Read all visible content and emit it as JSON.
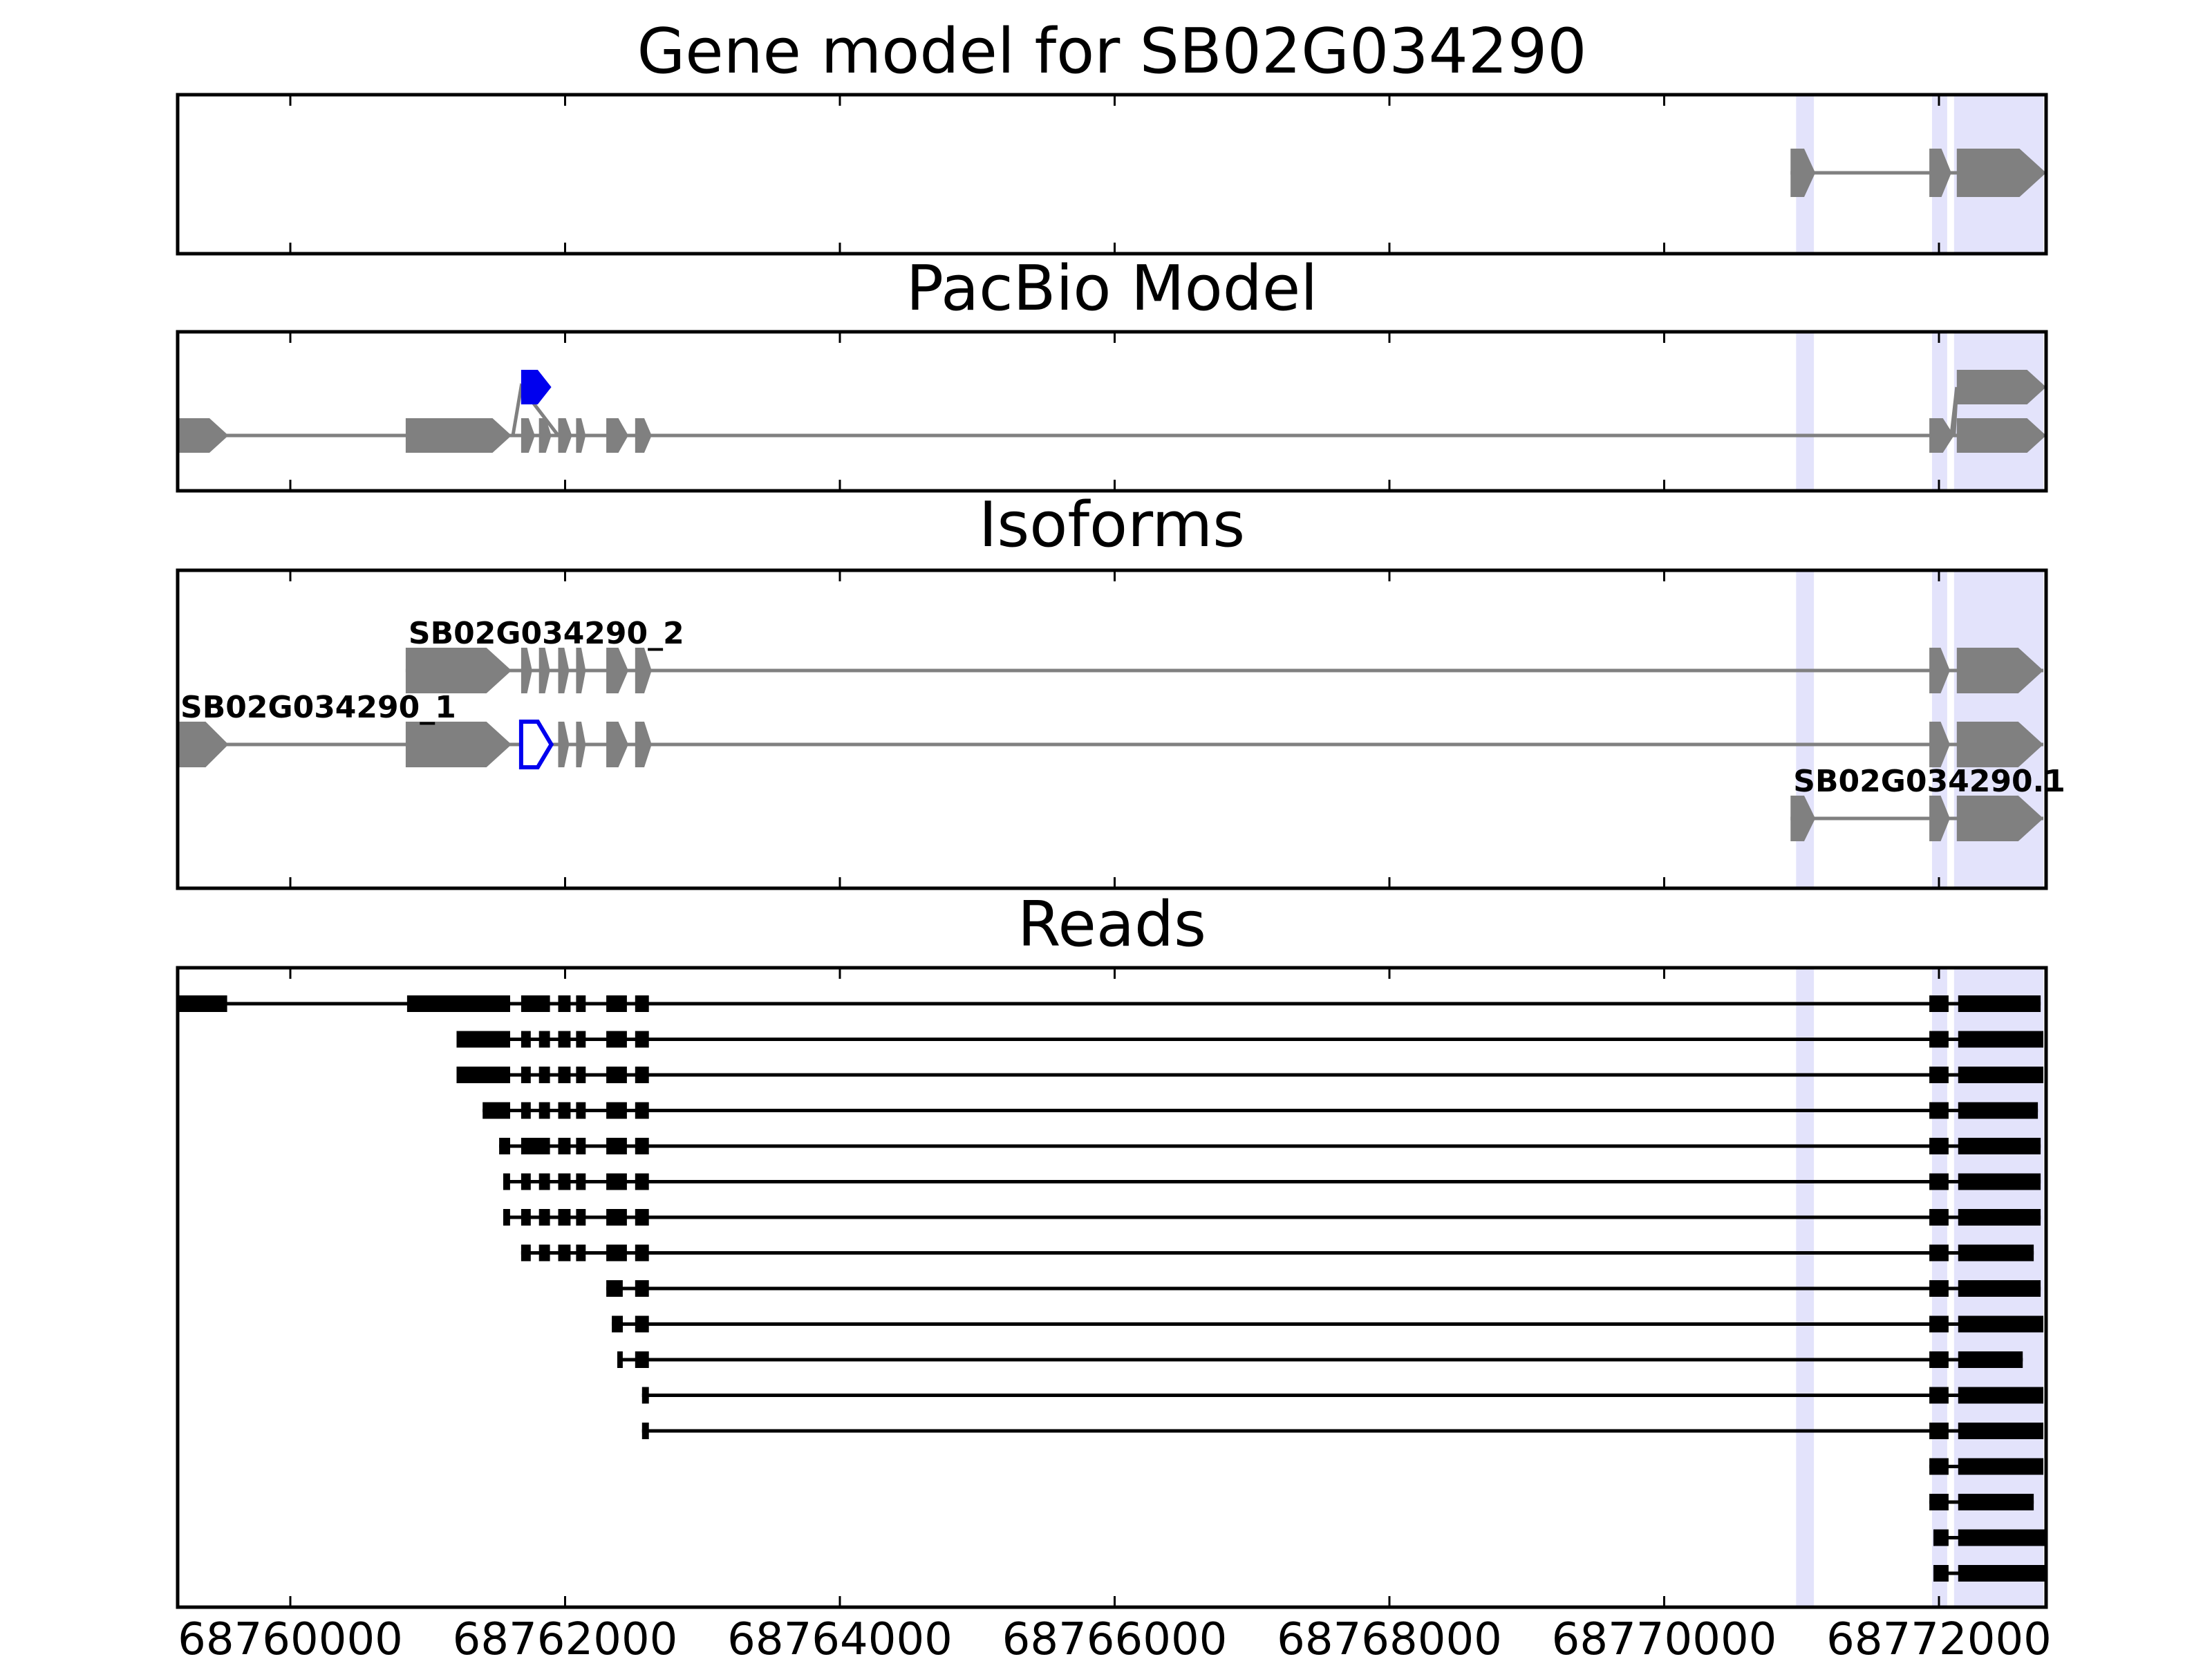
{
  "chart_data": {
    "type": "gene-structure",
    "x_domain": [
      68759180,
      68772780
    ],
    "x_ticks": [
      68760000,
      68762000,
      68764000,
      68766000,
      68768000,
      68770000,
      68772000
    ],
    "x_tick_labels": [
      "68760000",
      "68762000",
      "68764000",
      "68766000",
      "68768000",
      "68770000",
      "68772000"
    ],
    "highlight_regions": [
      [
        68770960,
        68771090
      ],
      [
        68771950,
        68772060
      ],
      [
        68772110,
        68772760
      ]
    ],
    "highlight_color": "#e3e3fb",
    "panels": [
      {
        "id": "gene-model",
        "title": "Gene model for SB02G034290",
        "rows": 1,
        "tracks": [
          {
            "row": 0,
            "color": "#808080",
            "exons": [
              [
                68770920,
                68771100
              ],
              [
                68771930,
                68772090
              ],
              [
                68772130,
                68772780
              ]
            ]
          }
        ]
      },
      {
        "id": "pacbio-model",
        "title": "PacBio Model",
        "rows": 2,
        "tracks": [
          {
            "row": 1,
            "color": "#808080",
            "exons": [
              [
                68759180,
                68759550
              ],
              [
                68760840,
                68761610
              ],
              [
                68761680,
                68761780
              ],
              [
                68761810,
                68761900
              ],
              [
                68761950,
                68762050
              ],
              [
                68762080,
                68762150
              ],
              [
                68762300,
                68762460
              ],
              [
                68762510,
                68762630
              ],
              [
                68771930,
                68772110
              ],
              [
                68772130,
                68772780
              ]
            ]
          },
          {
            "row": 0,
            "color": "#0000ee",
            "exons": [
              [
                68761680,
                68761900
              ]
            ],
            "connect_to_row": 1,
            "connect_from": 68761620,
            "connect_to": 68761950
          },
          {
            "row": 0,
            "color": "#808080",
            "exons": [
              [
                68772130,
                68772780
              ]
            ],
            "connect_to_row": 1,
            "connect_from": 68772090,
            "connect_to": 68772110
          }
        ]
      },
      {
        "id": "isoforms",
        "title": "Isoforms",
        "rows": 3,
        "tracks": [
          {
            "row": 0,
            "color": "#808080",
            "label": "SB02G034290_2",
            "exons": [
              [
                68760840,
                68761610
              ],
              [
                68761680,
                68761760
              ],
              [
                68761810,
                68761890
              ],
              [
                68761950,
                68762030
              ],
              [
                68762080,
                68762150
              ],
              [
                68762300,
                68762460
              ],
              [
                68762510,
                68762630
              ],
              [
                68771930,
                68772080
              ],
              [
                68772130,
                68772760
              ]
            ]
          },
          {
            "row": 1,
            "color": "#808080",
            "label": "SB02G034290_1",
            "exons": [
              [
                68759180,
                68759550
              ],
              [
                68760840,
                68761610
              ],
              [
                68761950,
                68762030
              ],
              [
                68762080,
                68762150
              ],
              [
                68762300,
                68762460
              ],
              [
                68762510,
                68762630
              ],
              [
                68771930,
                68772080
              ],
              [
                68772130,
                68772760
              ]
            ],
            "outlined_exons": [
              [
                68761680,
                68761900
              ]
            ]
          },
          {
            "row": 2,
            "color": "#808080",
            "label": "SB02G034290.1",
            "exons": [
              [
                68770920,
                68771100
              ],
              [
                68771930,
                68772080
              ],
              [
                68772130,
                68772760
              ]
            ]
          }
        ]
      },
      {
        "id": "reads",
        "title": "Reads",
        "rows": 17,
        "tracks": [
          {
            "row": 0,
            "color": "#000000",
            "exons": [
              [
                68759180,
                68759540
              ],
              [
                68760850,
                68761600
              ],
              [
                68761680,
                68761890
              ],
              [
                68761950,
                68762040
              ],
              [
                68762080,
                68762150
              ],
              [
                68762300,
                68762450
              ],
              [
                68762510,
                68762610
              ],
              [
                68771930,
                68772070
              ],
              [
                68772140,
                68772740
              ]
            ]
          },
          {
            "row": 1,
            "color": "#000000",
            "exons": [
              [
                68761210,
                68761600
              ],
              [
                68761680,
                68761750
              ],
              [
                68761810,
                68761890
              ],
              [
                68761950,
                68762040
              ],
              [
                68762080,
                68762150
              ],
              [
                68762300,
                68762450
              ],
              [
                68762510,
                68762610
              ],
              [
                68771930,
                68772070
              ],
              [
                68772140,
                68772760
              ]
            ]
          },
          {
            "row": 2,
            "color": "#000000",
            "exons": [
              [
                68761210,
                68761600
              ],
              [
                68761680,
                68761750
              ],
              [
                68761810,
                68761890
              ],
              [
                68761950,
                68762040
              ],
              [
                68762080,
                68762150
              ],
              [
                68762300,
                68762450
              ],
              [
                68762510,
                68762610
              ],
              [
                68771930,
                68772070
              ],
              [
                68772140,
                68772760
              ]
            ]
          },
          {
            "row": 3,
            "color": "#000000",
            "exons": [
              [
                68761400,
                68761600
              ],
              [
                68761680,
                68761750
              ],
              [
                68761810,
                68761890
              ],
              [
                68761950,
                68762040
              ],
              [
                68762080,
                68762150
              ],
              [
                68762300,
                68762450
              ],
              [
                68762510,
                68762610
              ],
              [
                68771930,
                68772070
              ],
              [
                68772140,
                68772720
              ]
            ]
          },
          {
            "row": 4,
            "color": "#000000",
            "exons": [
              [
                68761520,
                68761600
              ],
              [
                68761680,
                68761890
              ],
              [
                68761950,
                68762040
              ],
              [
                68762080,
                68762150
              ],
              [
                68762300,
                68762450
              ],
              [
                68762510,
                68762610
              ],
              [
                68771930,
                68772070
              ],
              [
                68772140,
                68772740
              ]
            ]
          },
          {
            "row": 5,
            "color": "#000000",
            "exons": [
              [
                68761550,
                68761600
              ],
              [
                68761680,
                68761750
              ],
              [
                68761810,
                68761890
              ],
              [
                68761950,
                68762040
              ],
              [
                68762080,
                68762150
              ],
              [
                68762300,
                68762450
              ],
              [
                68762510,
                68762610
              ],
              [
                68771930,
                68772070
              ],
              [
                68772140,
                68772740
              ]
            ]
          },
          {
            "row": 6,
            "color": "#000000",
            "exons": [
              [
                68761550,
                68761600
              ],
              [
                68761680,
                68761750
              ],
              [
                68761810,
                68761890
              ],
              [
                68761950,
                68762040
              ],
              [
                68762080,
                68762150
              ],
              [
                68762300,
                68762450
              ],
              [
                68762510,
                68762610
              ],
              [
                68771930,
                68772070
              ],
              [
                68772140,
                68772740
              ]
            ]
          },
          {
            "row": 7,
            "color": "#000000",
            "exons": [
              [
                68761680,
                68761750
              ],
              [
                68761810,
                68761890
              ],
              [
                68761950,
                68762040
              ],
              [
                68762080,
                68762150
              ],
              [
                68762300,
                68762450
              ],
              [
                68762510,
                68762610
              ],
              [
                68771930,
                68772070
              ],
              [
                68772140,
                68772690
              ]
            ]
          },
          {
            "row": 8,
            "color": "#000000",
            "exons": [
              [
                68762300,
                68762420
              ],
              [
                68762510,
                68762610
              ],
              [
                68771930,
                68772070
              ],
              [
                68772140,
                68772740
              ]
            ]
          },
          {
            "row": 9,
            "color": "#000000",
            "exons": [
              [
                68762340,
                68762420
              ],
              [
                68762510,
                68762610
              ],
              [
                68771930,
                68772070
              ],
              [
                68772140,
                68772760
              ]
            ]
          },
          {
            "row": 10,
            "color": "#000000",
            "exons": [
              [
                68762380,
                68762420
              ],
              [
                68762510,
                68762610
              ],
              [
                68771930,
                68772070
              ],
              [
                68772140,
                68772610
              ]
            ]
          },
          {
            "row": 11,
            "color": "#000000",
            "exons": [
              [
                68762560,
                68762610
              ],
              [
                68771930,
                68772070
              ],
              [
                68772140,
                68772760
              ]
            ]
          },
          {
            "row": 12,
            "color": "#000000",
            "exons": [
              [
                68762560,
                68762610
              ],
              [
                68771930,
                68772070
              ],
              [
                68772140,
                68772760
              ]
            ]
          },
          {
            "row": 13,
            "color": "#000000",
            "exons": [
              [
                68771930,
                68772070
              ],
              [
                68772140,
                68772760
              ]
            ]
          },
          {
            "row": 14,
            "color": "#000000",
            "exons": [
              [
                68771930,
                68772070
              ],
              [
                68772140,
                68772690
              ]
            ]
          },
          {
            "row": 15,
            "color": "#000000",
            "exons": [
              [
                68771960,
                68772070
              ],
              [
                68772140,
                68772780
              ]
            ]
          },
          {
            "row": 16,
            "color": "#000000",
            "exons": [
              [
                68771960,
                68772070
              ],
              [
                68772140,
                68772780
              ]
            ]
          }
        ]
      }
    ]
  }
}
